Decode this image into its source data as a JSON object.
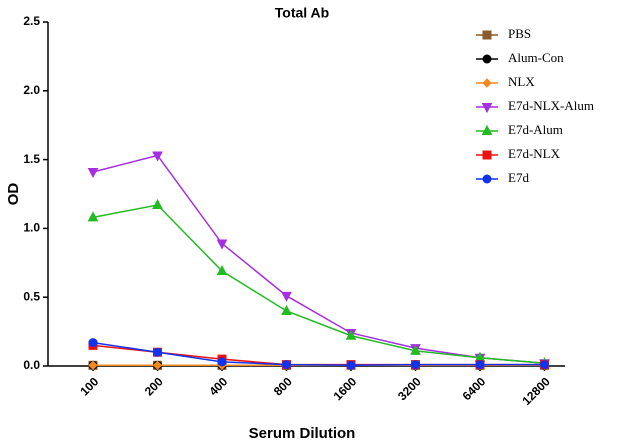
{
  "chart_data": {
    "type": "line",
    "title": "Total Ab",
    "x_label": "Serum Dilution",
    "y_label": "OD",
    "categories": [
      "100",
      "200",
      "400",
      "800",
      "1600",
      "3200",
      "6400",
      "12800"
    ],
    "ylim": [
      0,
      2.5
    ],
    "yticks": [
      {
        "value": 0,
        "label": "0.0"
      },
      0.5,
      {
        "value": 1,
        "label": "1.0"
      },
      1.5,
      {
        "value": 2,
        "label": "2.0"
      },
      2.5
    ],
    "series": [
      {
        "name": "PBS",
        "color": "#8b5a2b",
        "marker": "square",
        "values": [
          0.005,
          0.005,
          0.005,
          0.005,
          0.005,
          0.005,
          0.005,
          0.005
        ]
      },
      {
        "name": "Alum-Con",
        "color": "#000000",
        "marker": "circle",
        "values": [
          0.005,
          0.005,
          0.005,
          0.005,
          0.005,
          0.005,
          0.005,
          0.005
        ]
      },
      {
        "name": "NLX",
        "color": "#f28a1e",
        "marker": "diamond",
        "values": [
          0.005,
          0.005,
          0.005,
          0.005,
          0.005,
          0.005,
          0.005,
          0.005
        ]
      },
      {
        "name": "E7d-NLX-Alum",
        "color": "#a52ee0",
        "marker": "triangle-down",
        "values": [
          1.41,
          1.53,
          0.89,
          0.51,
          0.24,
          0.13,
          0.06,
          0.02
        ]
      },
      {
        "name": "E7d-Alum",
        "color": "#22bb22",
        "marker": "triangle",
        "values": [
          1.08,
          1.17,
          0.69,
          0.4,
          0.22,
          0.11,
          0.06,
          0.02
        ]
      },
      {
        "name": "E7d-NLX",
        "color": "#ee1111",
        "marker": "square",
        "values": [
          0.15,
          0.1,
          0.05,
          0.01,
          0.01,
          0.01,
          0.01,
          0.01
        ]
      },
      {
        "name": "E7d",
        "color": "#1133ee",
        "marker": "circle",
        "values": [
          0.17,
          0.1,
          0.03,
          0.01,
          0.005,
          0.01,
          0.01,
          0.01
        ]
      }
    ]
  }
}
